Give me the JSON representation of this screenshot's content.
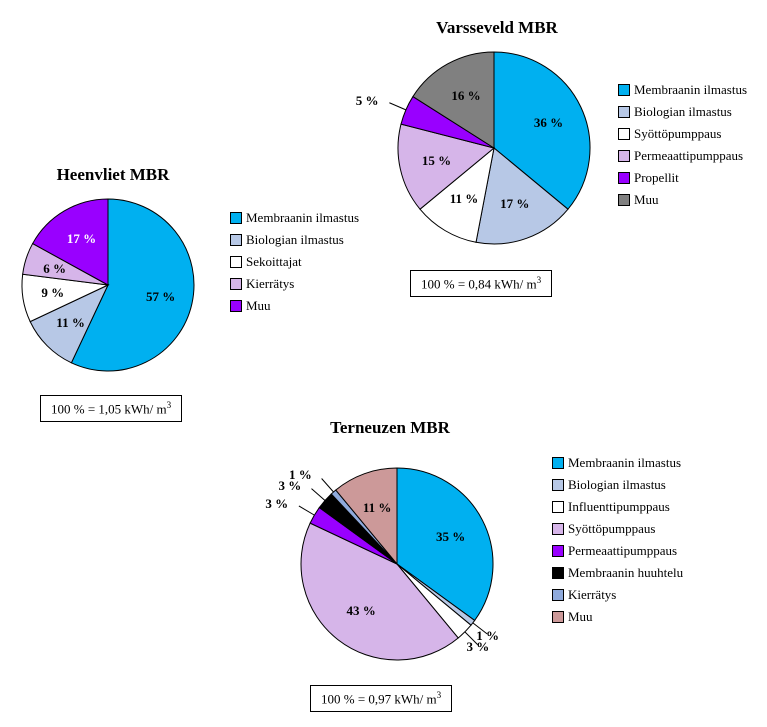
{
  "charts": {
    "heenvliet": {
      "title": "Heenvliet MBR",
      "title_fontsize": 17,
      "radius": 86,
      "caption": "100 % = 1,05 kWh/ m",
      "caption_sup": "3",
      "caption_fontsize": 13,
      "label_fontsize": 13,
      "legend_fontsize": 13,
      "slices": [
        {
          "label": "Membraanin ilmastus",
          "value": 57,
          "text": "57 %",
          "color": "#00b0f0",
          "label_color": "#000000"
        },
        {
          "label": "Biologian ilmastus",
          "value": 11,
          "text": "11 %",
          "color": "#b7c8e6",
          "label_color": "#000000"
        },
        {
          "label": "Sekoittajat",
          "value": 9,
          "text": "9 %",
          "color": "#ffffff",
          "label_color": "#000000"
        },
        {
          "label": "Kierrätys",
          "value": 6,
          "text": "6 %",
          "color": "#d6b5e9",
          "label_color": "#000000"
        },
        {
          "label": "Muu",
          "value": 17,
          "text": "17 %",
          "color": "#9900ff",
          "label_color": "#ffffff"
        }
      ]
    },
    "varsseveld": {
      "title": "Varsseveld MBR",
      "title_fontsize": 17,
      "radius": 96,
      "caption": "100 % = 0,84 kWh/ m",
      "caption_sup": "3",
      "caption_fontsize": 13,
      "label_fontsize": 13,
      "legend_fontsize": 13,
      "slices": [
        {
          "label": "Membraanin ilmastus",
          "value": 36,
          "text": "36 %",
          "color": "#00b0f0",
          "label_color": "#000000"
        },
        {
          "label": "Biologian ilmastus",
          "value": 17,
          "text": "17 %",
          "color": "#b7c8e6",
          "label_color": "#000000"
        },
        {
          "label": "Syöttöpumppaus",
          "value": 11,
          "text": "11 %",
          "color": "#ffffff",
          "label_color": "#000000"
        },
        {
          "label": "Permeaattipumppaus",
          "value": 15,
          "text": "15 %",
          "color": "#d6b5e9",
          "label_color": "#000000"
        },
        {
          "label": "Propellit",
          "value": 5,
          "text": "5 %",
          "color": "#9900ff",
          "label_color": "#ffffff"
        },
        {
          "label": "Muu",
          "value": 16,
          "text": "16 %",
          "color": "#808080",
          "label_color": "#000000"
        }
      ]
    },
    "terneuzen": {
      "title": "Terneuzen MBR",
      "title_fontsize": 17,
      "radius": 96,
      "caption": "100 % = 0,97 kWh/ m",
      "caption_sup": "3",
      "caption_fontsize": 13,
      "label_fontsize": 13,
      "legend_fontsize": 13,
      "slices": [
        {
          "label": "Membraanin ilmastus",
          "value": 35,
          "text": "35 %",
          "color": "#00b0f0",
          "label_color": "#000000"
        },
        {
          "label": "Biologian ilmastus",
          "value": 1,
          "text": "1 %",
          "color": "#b7c8e6",
          "label_color": "#000000"
        },
        {
          "label": "Influenttipumppaus",
          "value": 3,
          "text": "3 %",
          "color": "#ffffff",
          "label_color": "#000000"
        },
        {
          "label": "Syöttöpumppaus",
          "value": 43,
          "text": "43 %",
          "color": "#d6b5e9",
          "label_color": "#000000"
        },
        {
          "label": "Permeaattipumppaus",
          "value": 3,
          "text": "3 %",
          "color": "#9900ff",
          "label_color": "#ffffff"
        },
        {
          "label": "Membraanin huuhtelu",
          "value": 3,
          "text": "3 %",
          "color": "#000000",
          "label_color": "#000000"
        },
        {
          "label": "Kierrätys",
          "value": 1,
          "text": "1 %",
          "color": "#8faadc",
          "label_color": "#000000"
        },
        {
          "label": "Muu",
          "value": 11,
          "text": "11 %",
          "color": "#cc9999",
          "label_color": "#000000"
        }
      ]
    }
  },
  "stroke_color": "#000000",
  "stroke_width": 1
}
